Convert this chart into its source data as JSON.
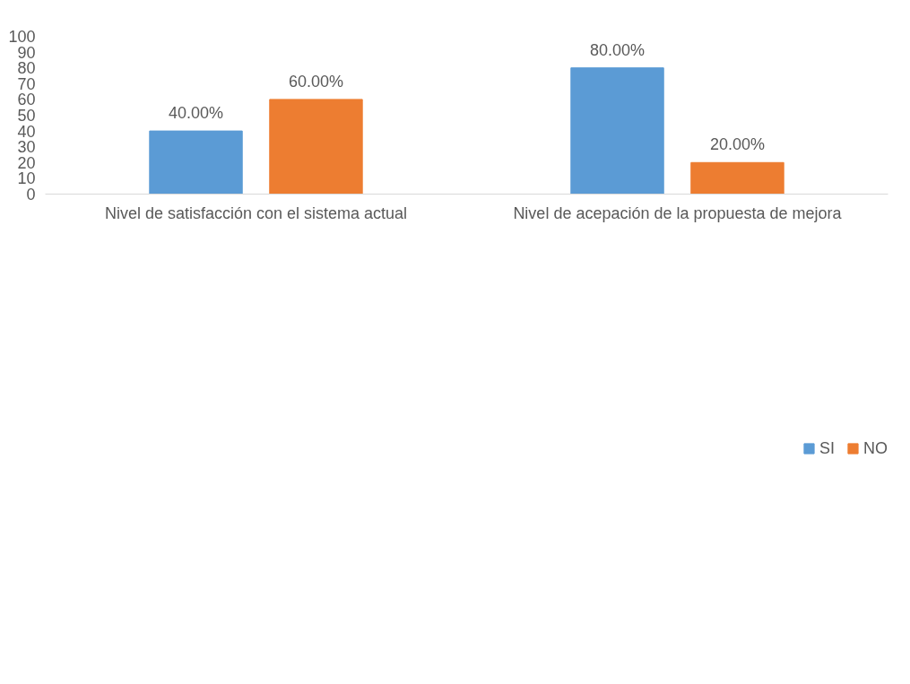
{
  "chart_data": {
    "type": "bar",
    "categories": [
      "Nivel de satisfacción con el sistema actual",
      "Nivel de acepación de la propuesta de mejora"
    ],
    "series": [
      {
        "name": "SI",
        "color": "#5b9bd5",
        "values": [
          40,
          80
        ],
        "value_labels": [
          "40.00%",
          "80.00%"
        ]
      },
      {
        "name": "NO",
        "color": "#ed7d31",
        "values": [
          60,
          20
        ],
        "value_labels": [
          "60.00%",
          "20.00%"
        ]
      }
    ],
    "ylim": [
      0,
      100
    ],
    "yticks": [
      0,
      10,
      20,
      30,
      40,
      50,
      60,
      70,
      80,
      90,
      100
    ],
    "grid": false,
    "legend": "bottom"
  }
}
